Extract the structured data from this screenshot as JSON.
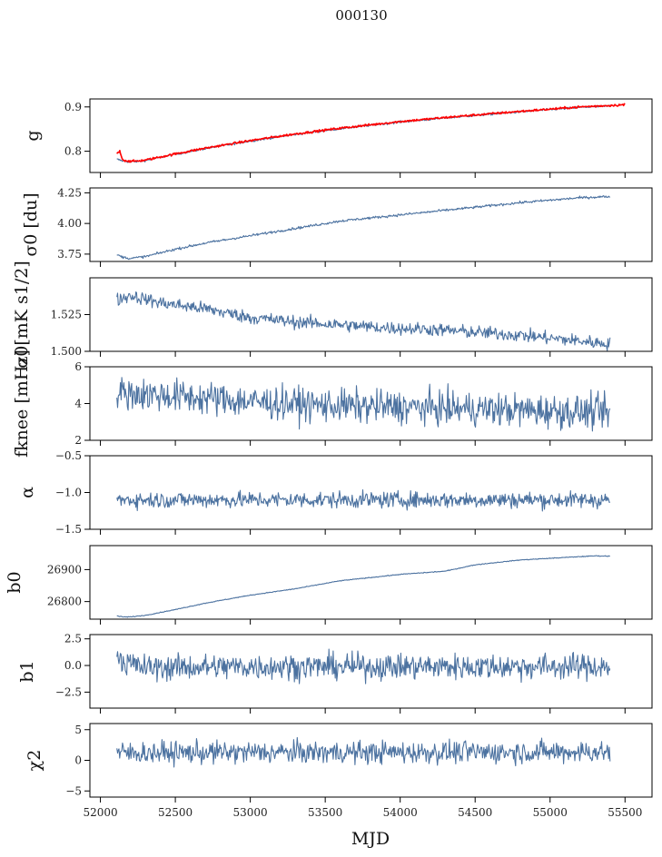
{
  "figure": {
    "title": "000130",
    "xlabel": "MJD"
  },
  "colors": {
    "series": "#4c72a0",
    "fit": "#ff0000",
    "axis": "#000000"
  },
  "chart_data": [
    {
      "type": "line",
      "key": "g",
      "ylabel": "g",
      "xlim": [
        51930,
        55680
      ],
      "ylim": [
        0.752,
        0.918
      ],
      "yticks": [
        0.8,
        0.9
      ],
      "ytick_labels": [
        "0.8",
        "0.9"
      ],
      "xticks": [
        52000,
        52500,
        53000,
        53500,
        54000,
        54500,
        55000,
        55500
      ],
      "show_xtick_labels": false,
      "series": [
        {
          "name": "",
          "style": "line",
          "x": [
            52110,
            52150,
            52200,
            52250,
            52300,
            52400,
            52500,
            52700,
            53000,
            53300,
            53600,
            54000,
            54400,
            54800,
            55200,
            55400
          ],
          "y": [
            0.782,
            0.778,
            0.776,
            0.777,
            0.779,
            0.786,
            0.793,
            0.806,
            0.823,
            0.838,
            0.851,
            0.866,
            0.878,
            0.889,
            0.899,
            0.902
          ],
          "noise": 0.0012
        },
        {
          "name": "",
          "style": "fit",
          "x": [
            52110,
            52130,
            52150,
            52200,
            52250,
            52300,
            52400,
            52500,
            52700,
            53000,
            53300,
            53600,
            54000,
            54400,
            54800,
            55200,
            55500
          ],
          "y": [
            0.795,
            0.8,
            0.78,
            0.777,
            0.778,
            0.78,
            0.787,
            0.794,
            0.807,
            0.824,
            0.839,
            0.852,
            0.867,
            0.879,
            0.89,
            0.9,
            0.905
          ],
          "noise": 0.0012
        }
      ]
    },
    {
      "type": "line",
      "key": "sigma0_du",
      "ylabel": "σ0 [du]",
      "xlim": [
        51930,
        55680
      ],
      "ylim": [
        3.69,
        4.29
      ],
      "yticks": [
        3.75,
        4.0,
        4.25
      ],
      "ytick_labels": [
        "3.75",
        "4.00",
        "4.25"
      ],
      "xticks": [
        52000,
        52500,
        53000,
        53500,
        54000,
        54500,
        55000,
        55500
      ],
      "show_xtick_labels": false,
      "series": [
        {
          "name": "",
          "style": "line",
          "x": [
            52110,
            52150,
            52200,
            52300,
            52500,
            52700,
            53000,
            53300,
            53600,
            54000,
            54400,
            54800,
            55200,
            55400
          ],
          "y": [
            3.745,
            3.725,
            3.715,
            3.73,
            3.79,
            3.84,
            3.9,
            3.96,
            4.02,
            4.07,
            4.12,
            4.17,
            4.21,
            4.22
          ],
          "noise": 0.005
        }
      ]
    },
    {
      "type": "line",
      "key": "sigma0_mk",
      "ylabel": "σ0[mK s1/2]",
      "xlim": [
        51930,
        55680
      ],
      "ylim": [
        1.5,
        1.55
      ],
      "yticks": [
        1.5,
        1.525
      ],
      "ytick_labels": [
        "1.500",
        "1.525"
      ],
      "xticks": [
        52000,
        52500,
        53000,
        53500,
        54000,
        54500,
        55000,
        55500
      ],
      "show_xtick_labels": false,
      "series": [
        {
          "name": "",
          "style": "line",
          "x": [
            52110,
            52200,
            52400,
            52700,
            53000,
            53300,
            53600,
            53900,
            54200,
            54500,
            54800,
            55100,
            55400
          ],
          "y": [
            1.535,
            1.538,
            1.533,
            1.529,
            1.523,
            1.52,
            1.518,
            1.516,
            1.515,
            1.513,
            1.511,
            1.508,
            1.505
          ],
          "noise": 0.0022
        }
      ]
    },
    {
      "type": "line",
      "key": "fknee",
      "ylabel": "fknee [mHz]",
      "xlim": [
        51930,
        55680
      ],
      "ylim": [
        2,
        6
      ],
      "yticks": [
        2,
        4,
        6
      ],
      "ytick_labels": [
        "2",
        "4",
        "6"
      ],
      "xticks": [
        52000,
        52500,
        53000,
        53500,
        54000,
        54500,
        55000,
        55500
      ],
      "show_xtick_labels": false,
      "series": [
        {
          "name": "",
          "style": "line",
          "x": [
            52110,
            52300,
            52700,
            53000,
            53500,
            54000,
            54500,
            55000,
            55400
          ],
          "y": [
            4.6,
            4.5,
            4.3,
            4.1,
            3.9,
            3.8,
            3.7,
            3.6,
            3.5
          ],
          "noise": 0.45
        }
      ]
    },
    {
      "type": "line",
      "key": "alpha",
      "ylabel": "α",
      "xlim": [
        51930,
        55680
      ],
      "ylim": [
        -1.5,
        -0.5
      ],
      "yticks": [
        -1.5,
        -1.0,
        -0.5
      ],
      "ytick_labels": [
        "−1.5",
        "−1.0",
        "−0.5"
      ],
      "xticks": [
        52000,
        52500,
        53000,
        53500,
        54000,
        54500,
        55000,
        55500
      ],
      "show_xtick_labels": false,
      "series": [
        {
          "name": "",
          "style": "line",
          "x": [
            52110,
            53000,
            54000,
            55400
          ],
          "y": [
            -1.1,
            -1.1,
            -1.1,
            -1.1
          ],
          "noise": 0.055
        }
      ]
    },
    {
      "type": "line",
      "key": "b0",
      "ylabel": "b0",
      "xlim": [
        51930,
        55680
      ],
      "ylim": [
        26745,
        26975
      ],
      "yticks": [
        26800,
        26900
      ],
      "ytick_labels": [
        "26800",
        "26900"
      ],
      "xticks": [
        52000,
        52500,
        53000,
        53500,
        54000,
        54500,
        55000,
        55500
      ],
      "show_xtick_labels": false,
      "series": [
        {
          "name": "",
          "style": "line",
          "x": [
            52110,
            52150,
            52200,
            52300,
            52500,
            52700,
            53000,
            53300,
            53600,
            54000,
            54300,
            54500,
            54800,
            55100,
            55300,
            55400
          ],
          "y": [
            26755,
            26752,
            26752,
            26757,
            26775,
            26795,
            26820,
            26840,
            26865,
            26885,
            26895,
            26915,
            26930,
            26938,
            26943,
            26942
          ],
          "noise": 0.6
        }
      ]
    },
    {
      "type": "line",
      "key": "b1",
      "ylabel": "b1",
      "xlim": [
        51930,
        55680
      ],
      "ylim": [
        -4.0,
        2.9
      ],
      "yticks": [
        -2.5,
        0.0,
        2.5
      ],
      "ytick_labels": [
        "−2.5",
        "0.0",
        "2.5"
      ],
      "xticks": [
        52000,
        52500,
        53000,
        53500,
        54000,
        54500,
        55000,
        55500
      ],
      "show_xtick_labels": false,
      "series": [
        {
          "name": "",
          "style": "line",
          "x": [
            52110,
            52150,
            52300,
            53000,
            54000,
            55000,
            55400
          ],
          "y": [
            1.5,
            0.3,
            -0.2,
            -0.1,
            -0.1,
            -0.1,
            -0.1
          ],
          "noise": 0.6
        }
      ]
    },
    {
      "type": "line",
      "key": "chi2",
      "ylabel": "χ2",
      "xlim": [
        51930,
        55680
      ],
      "ylim": [
        -6,
        6
      ],
      "yticks": [
        -5,
        0,
        5
      ],
      "ytick_labels": [
        "−5",
        "0",
        "5"
      ],
      "xticks": [
        52000,
        52500,
        53000,
        53500,
        54000,
        54500,
        55000,
        55500
      ],
      "xtick_labels": [
        "52000",
        "52500",
        "53000",
        "53500",
        "54000",
        "54500",
        "55000",
        "55500"
      ],
      "show_xtick_labels": true,
      "series": [
        {
          "name": "",
          "style": "line",
          "x": [
            52110,
            53000,
            54000,
            55400
          ],
          "y": [
            1.2,
            1.3,
            1.3,
            1.4
          ],
          "noise": 0.9
        }
      ]
    }
  ]
}
